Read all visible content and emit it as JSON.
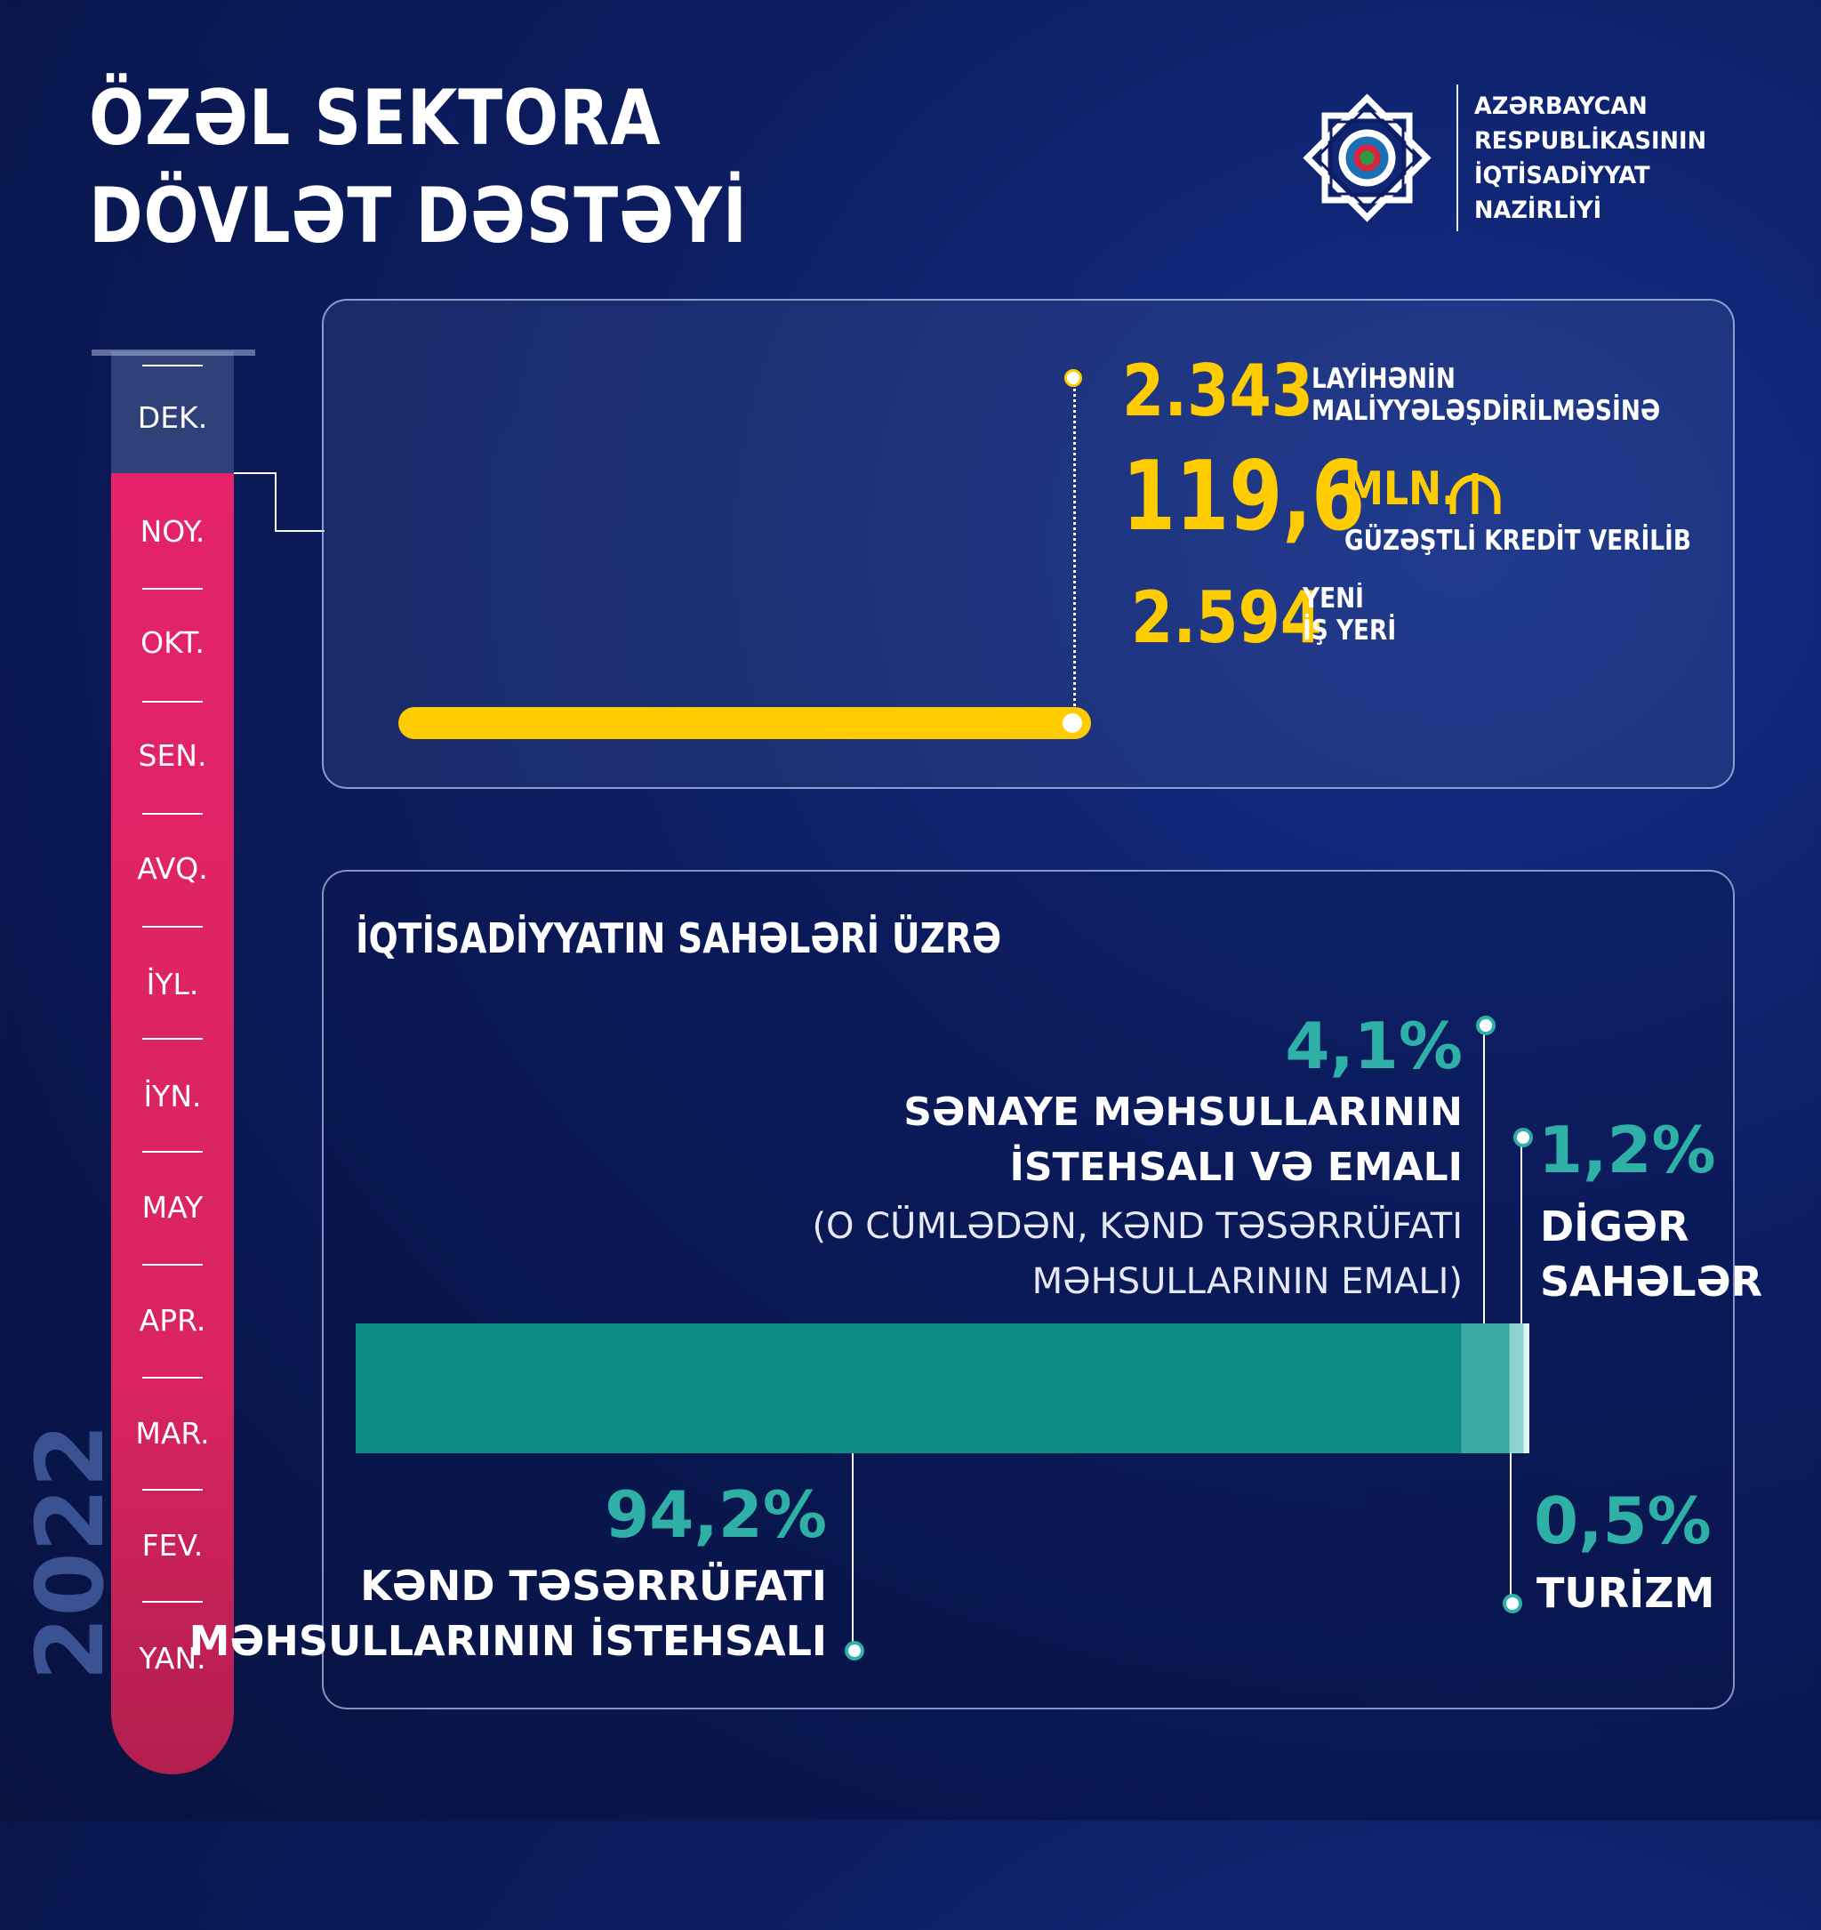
{
  "header": {
    "title_line1": "ÖZƏL SEKTORA",
    "title_line2": "DÖVLƏT DƏSTƏYİ",
    "ministry": [
      "AZƏRBAYCAN",
      "RESPUBLİKASININ",
      "İQTİSADİYYAT",
      "NAZİRLİYİ"
    ]
  },
  "timeline": {
    "year": "2022",
    "months": [
      "DEK.",
      "NOY.",
      "OKT.",
      "SEN.",
      "AVQ.",
      "İYL.",
      "İYN.",
      "MAY",
      "APR.",
      "MAR.",
      "FEV.",
      "YAN."
    ],
    "filled_through": "NOY."
  },
  "summary": {
    "projects_value": "2.343",
    "projects_label1": "LAYİHƏNİN",
    "projects_label2": "MALİYYƏLƏŞDİRİLMƏSİNƏ",
    "credit_value": "119,6",
    "credit_unit": "MLN.",
    "credit_label": "GÜZƏŞTLİ KREDİT VERİLİB",
    "jobs_value": "2.594",
    "jobs_label1": "YENİ",
    "jobs_label2": "İŞ YERİ",
    "progress_fraction": 0.49
  },
  "sectors": {
    "title": "İQTİSADİYYATIN SAHƏLƏRİ ÜZRƏ",
    "items": [
      {
        "pct": "94,2%",
        "line1": "KƏND TƏSƏRRÜFATI",
        "line2": "MƏHSULLARININ İSTEHSALI"
      },
      {
        "pct": "4,1%",
        "line1": "SƏNAYE MƏHSULLARININ",
        "line2": "İSTEHSALI VƏ EMALI",
        "note1": "(O CÜMLƏDƏN, KƏND TƏSƏRRÜFATI",
        "note2": "MƏHSULLARININ EMALI)"
      },
      {
        "pct": "1,2%",
        "line1": "DİGƏR",
        "line2": "SAHƏLƏR"
      },
      {
        "pct": "0,5%",
        "line1": "TURİZM"
      }
    ]
  },
  "chart_data": {
    "type": "bar",
    "title": "İQTİSADİYYATIN SAHƏLƏRİ ÜZRƏ",
    "stacked": true,
    "categories": [
      "KƏND TƏSƏRRÜFATI MƏHSULLARININ İSTEHSALI",
      "SƏNAYE MƏHSULLARININ İSTEHSALI VƏ EMALI",
      "DİGƏR SAHƏLƏR",
      "TURİZM"
    ],
    "values": [
      94.2,
      4.1,
      1.2,
      0.5
    ],
    "colors": [
      "#0e8a86",
      "#3aa8a4",
      "#8fd3d0",
      "#dff3f2"
    ]
  }
}
